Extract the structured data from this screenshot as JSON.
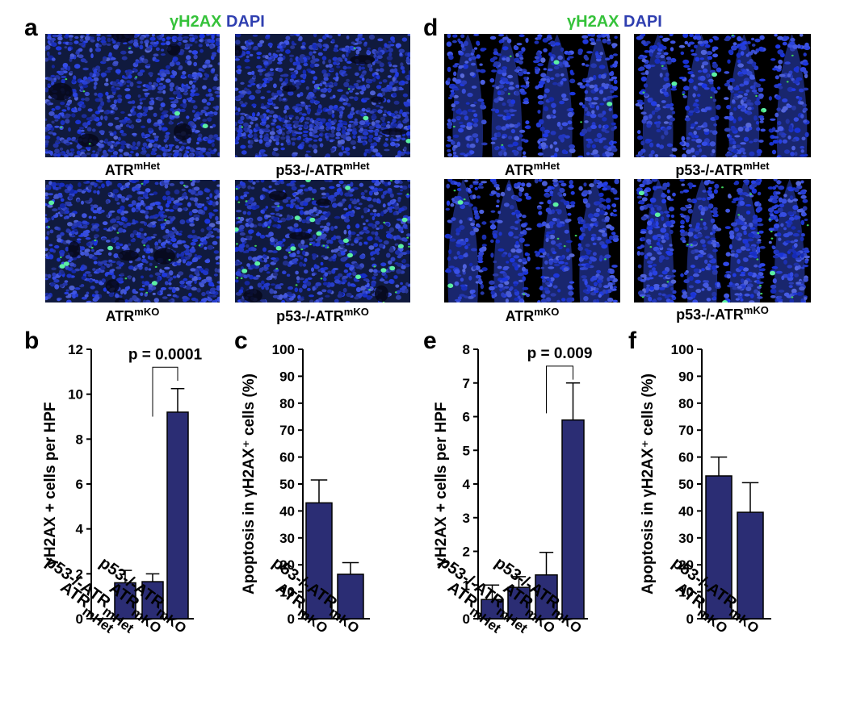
{
  "figure": {
    "panels": {
      "a": "a",
      "b": "b",
      "c": "c",
      "d": "d",
      "e": "e",
      "f": "f"
    },
    "stain_legend": {
      "marker": "γH2AX",
      "counterstain": "DAPI"
    },
    "colors": {
      "bar_fill": "#2b2d74",
      "marker_green": "#35c23a",
      "dapi_blue": "#2f3fb0",
      "tissue_background": "#101a3e"
    },
    "captions": {
      "a_top_left": {
        "base": "ATR",
        "sup": "mHet"
      },
      "a_top_right": {
        "base": "p53-/-ATR",
        "sup": "mHet"
      },
      "a_bottom_left": {
        "base": "ATR",
        "sup": "mKO"
      },
      "a_bottom_right": {
        "base": "p53-/-ATR",
        "sup": "mKO"
      },
      "d_top_left": {
        "base": "ATR",
        "sup": "mHet"
      },
      "d_top_right": {
        "base": "p53-/-ATR",
        "sup": "mHet"
      },
      "d_bottom_left": {
        "base": "ATR",
        "sup": "mKO"
      },
      "d_bottom_right": {
        "base": "p53-/-ATR",
        "sup": "mKO"
      }
    }
  },
  "chart_data": [
    {
      "id": "b",
      "type": "bar",
      "ylabel": "γH2AX + cells per HPF",
      "ylim": [
        0,
        12
      ],
      "yticks": [
        0,
        2,
        4,
        6,
        8,
        10,
        12
      ],
      "categories": [
        {
          "base": "ATR",
          "sup": "mHet"
        },
        {
          "base": "p53-/-ATR",
          "sup": "mHet"
        },
        {
          "base": "ATR",
          "sup": "mKO"
        },
        {
          "base": "p53-/-ATR",
          "sup": "mKO"
        }
      ],
      "values": [
        0,
        1.6,
        1.65,
        9.2
      ],
      "errors": [
        0,
        0.55,
        0.35,
        1.05
      ],
      "significance": {
        "text": "p = 0.0001",
        "from": 2,
        "to": 3,
        "left_y": 9.0,
        "right_y": 10.6,
        "top_y": 11.2
      }
    },
    {
      "id": "c",
      "type": "bar",
      "ylabel": "Apoptosis in γH2AX⁺ cells (%)",
      "ylim": [
        0,
        100
      ],
      "yticks": [
        0,
        10,
        20,
        30,
        40,
        50,
        60,
        70,
        80,
        90,
        100
      ],
      "categories": [
        {
          "base": "ATR",
          "sup": "mKO"
        },
        {
          "base": "p53-/-ATR",
          "sup": "mKO"
        }
      ],
      "values": [
        43,
        16.5
      ],
      "errors": [
        8.5,
        4.3
      ]
    },
    {
      "id": "e",
      "type": "bar",
      "ylabel": "γH2AX + cells per HPF",
      "ylim": [
        0,
        8
      ],
      "yticks": [
        0,
        1,
        2,
        3,
        4,
        5,
        6,
        7,
        8
      ],
      "categories": [
        {
          "base": "ATR",
          "sup": "mHet"
        },
        {
          "base": "p53-/-ATR",
          "sup": "mHet"
        },
        {
          "base": "ATR",
          "sup": "mKO"
        },
        {
          "base": "p53-/-ATR",
          "sup": "mKO"
        }
      ],
      "values": [
        0.57,
        0.93,
        1.3,
        5.9
      ],
      "errors": [
        0.43,
        0.32,
        0.67,
        1.1
      ],
      "significance": {
        "text": "p = 0.009",
        "from": 2,
        "to": 3,
        "left_y": 6.1,
        "right_y": 7.1,
        "top_y": 7.5
      }
    },
    {
      "id": "f",
      "type": "bar",
      "ylabel": "Apoptosis in γH2AX⁺ cells (%)",
      "ylim": [
        0,
        100
      ],
      "yticks": [
        0,
        10,
        20,
        30,
        40,
        50,
        60,
        70,
        80,
        90,
        100
      ],
      "categories": [
        {
          "base": "ATR",
          "sup": "mKO"
        },
        {
          "base": "p53-/-ATR",
          "sup": "mKO"
        }
      ],
      "values": [
        53,
        39.5
      ],
      "errors": [
        7,
        11
      ]
    }
  ]
}
